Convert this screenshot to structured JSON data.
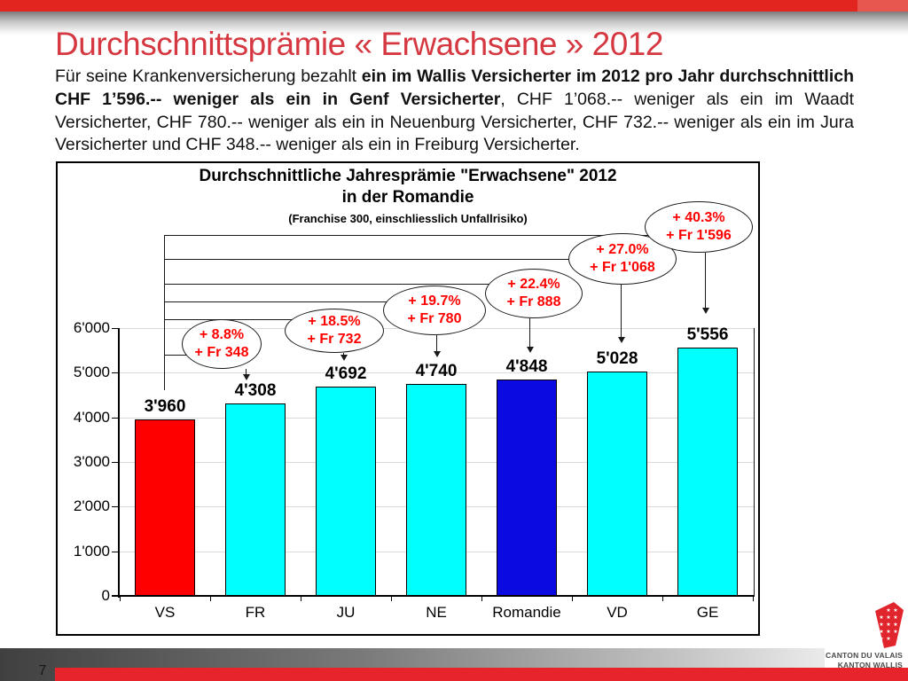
{
  "header": {
    "title": "Durchschnittsprämie « Erwachsene » 2012"
  },
  "intro": {
    "text_before_bold": "Für seine Krankenversicherung bezahlt ",
    "text_bold": "ein im Wallis Versicherter im 2012 pro Jahr durchschnittlich CHF 1’596.-- weniger als ein in Genf Versicherter",
    "text_after_bold": ", CHF 1’068.-- weniger als ein im Waadt Versicherter, CHF 780.-- weniger als ein in Neuenburg Versicherter, CHF 732.-- weniger als ein im Jura Versicherter und CHF 348.-- weniger als ein in Freiburg Versicherter."
  },
  "chart_data": {
    "type": "bar",
    "title_line1": "Durchschnittliche Jahresprämie \"Erwachsene\" 2012",
    "title_line2": "in der Romandie",
    "subtitle": "(Franchise 300, einschliesslich Unfallrisiko)",
    "categories": [
      "VS",
      "FR",
      "JU",
      "NE",
      "Romandie",
      "VD",
      "GE"
    ],
    "values": [
      3960,
      4308,
      4692,
      4740,
      4848,
      5028,
      5556
    ],
    "value_labels": [
      "3'960",
      "4'308",
      "4'692",
      "4'740",
      "4'848",
      "5'028",
      "5'556"
    ],
    "bar_colors": [
      "#ff0000",
      "#00ffff",
      "#00ffff",
      "#00ffff",
      "#0a0ae1",
      "#00ffff",
      "#00ffff"
    ],
    "ylim": [
      0,
      6000
    ],
    "ytick_labels": [
      "0",
      "1'000",
      "2'000",
      "3'000",
      "4'000",
      "5'000",
      "6'000"
    ],
    "grid": true,
    "legend": "none",
    "callout_text_color": "#ff0000",
    "callouts": [
      {
        "category": "FR",
        "line1": "+ 8.8%",
        "line2": "+ Fr 348"
      },
      {
        "category": "JU",
        "line1": "+ 18.5%",
        "line2": "+ Fr 732"
      },
      {
        "category": "NE",
        "line1": "+ 19.7%",
        "line2": "+ Fr 780"
      },
      {
        "category": "Romandie",
        "line1": "+ 22.4%",
        "line2": "+ Fr 888"
      },
      {
        "category": "VD",
        "line1": "+ 27.0%",
        "line2": "+ Fr 1'068"
      },
      {
        "category": "GE",
        "line1": "+ 40.3%",
        "line2": "+ Fr 1'596"
      }
    ]
  },
  "footer": {
    "page_number": "7",
    "logo_text_line1": "CANTON DU VALAIS",
    "logo_text_line2": "KANTON WALLIS"
  }
}
